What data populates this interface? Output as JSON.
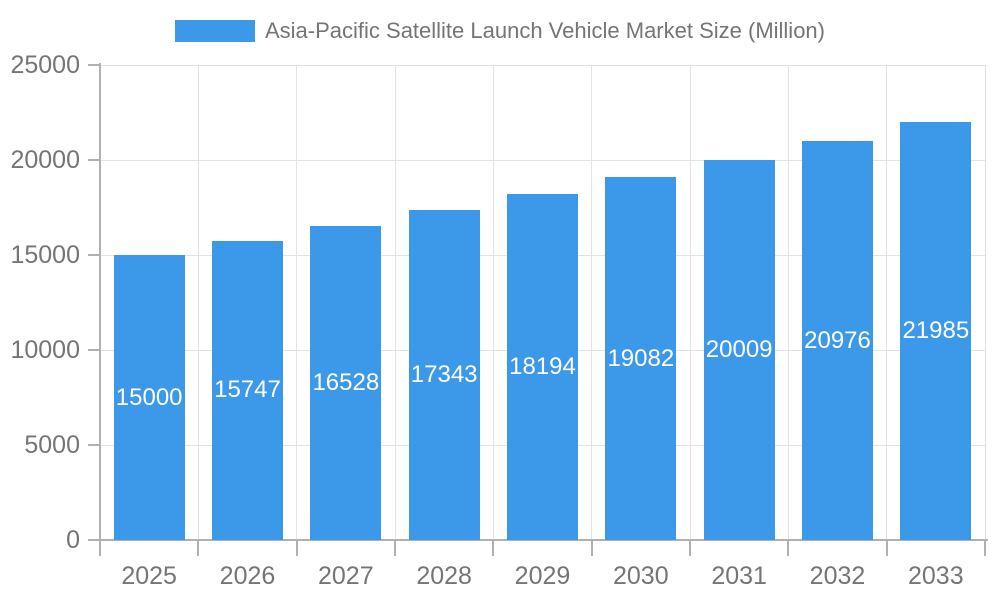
{
  "chart_data": {
    "type": "bar",
    "title": "Asia-Pacific Satellite Launch Vehicle Market Size (Million)",
    "categories": [
      "2025",
      "2026",
      "2027",
      "2028",
      "2029",
      "2030",
      "2031",
      "2032",
      "2033"
    ],
    "values": [
      15000,
      15747,
      16528,
      17343,
      18194,
      19082,
      20009,
      20976,
      21985
    ],
    "value_labels": [
      "15000",
      "15747",
      "16528",
      "17343",
      "18194",
      "19082",
      "20009",
      "20976",
      "21985"
    ],
    "ylim": [
      0,
      25000
    ],
    "ytick_step": 5000,
    "ytick_labels": [
      "0",
      "5000",
      "10000",
      "15000",
      "20000",
      "25000"
    ],
    "xlabel": "",
    "ylabel": "",
    "grid": "horizontal-and-vertical",
    "legend_position": "top-center",
    "colors": {
      "bar": "#3C99EA",
      "axis_text": "#757575",
      "value_text": "#ffffff",
      "gridline": "#E3E3E3",
      "axis_line": "#B0B0B0"
    }
  }
}
